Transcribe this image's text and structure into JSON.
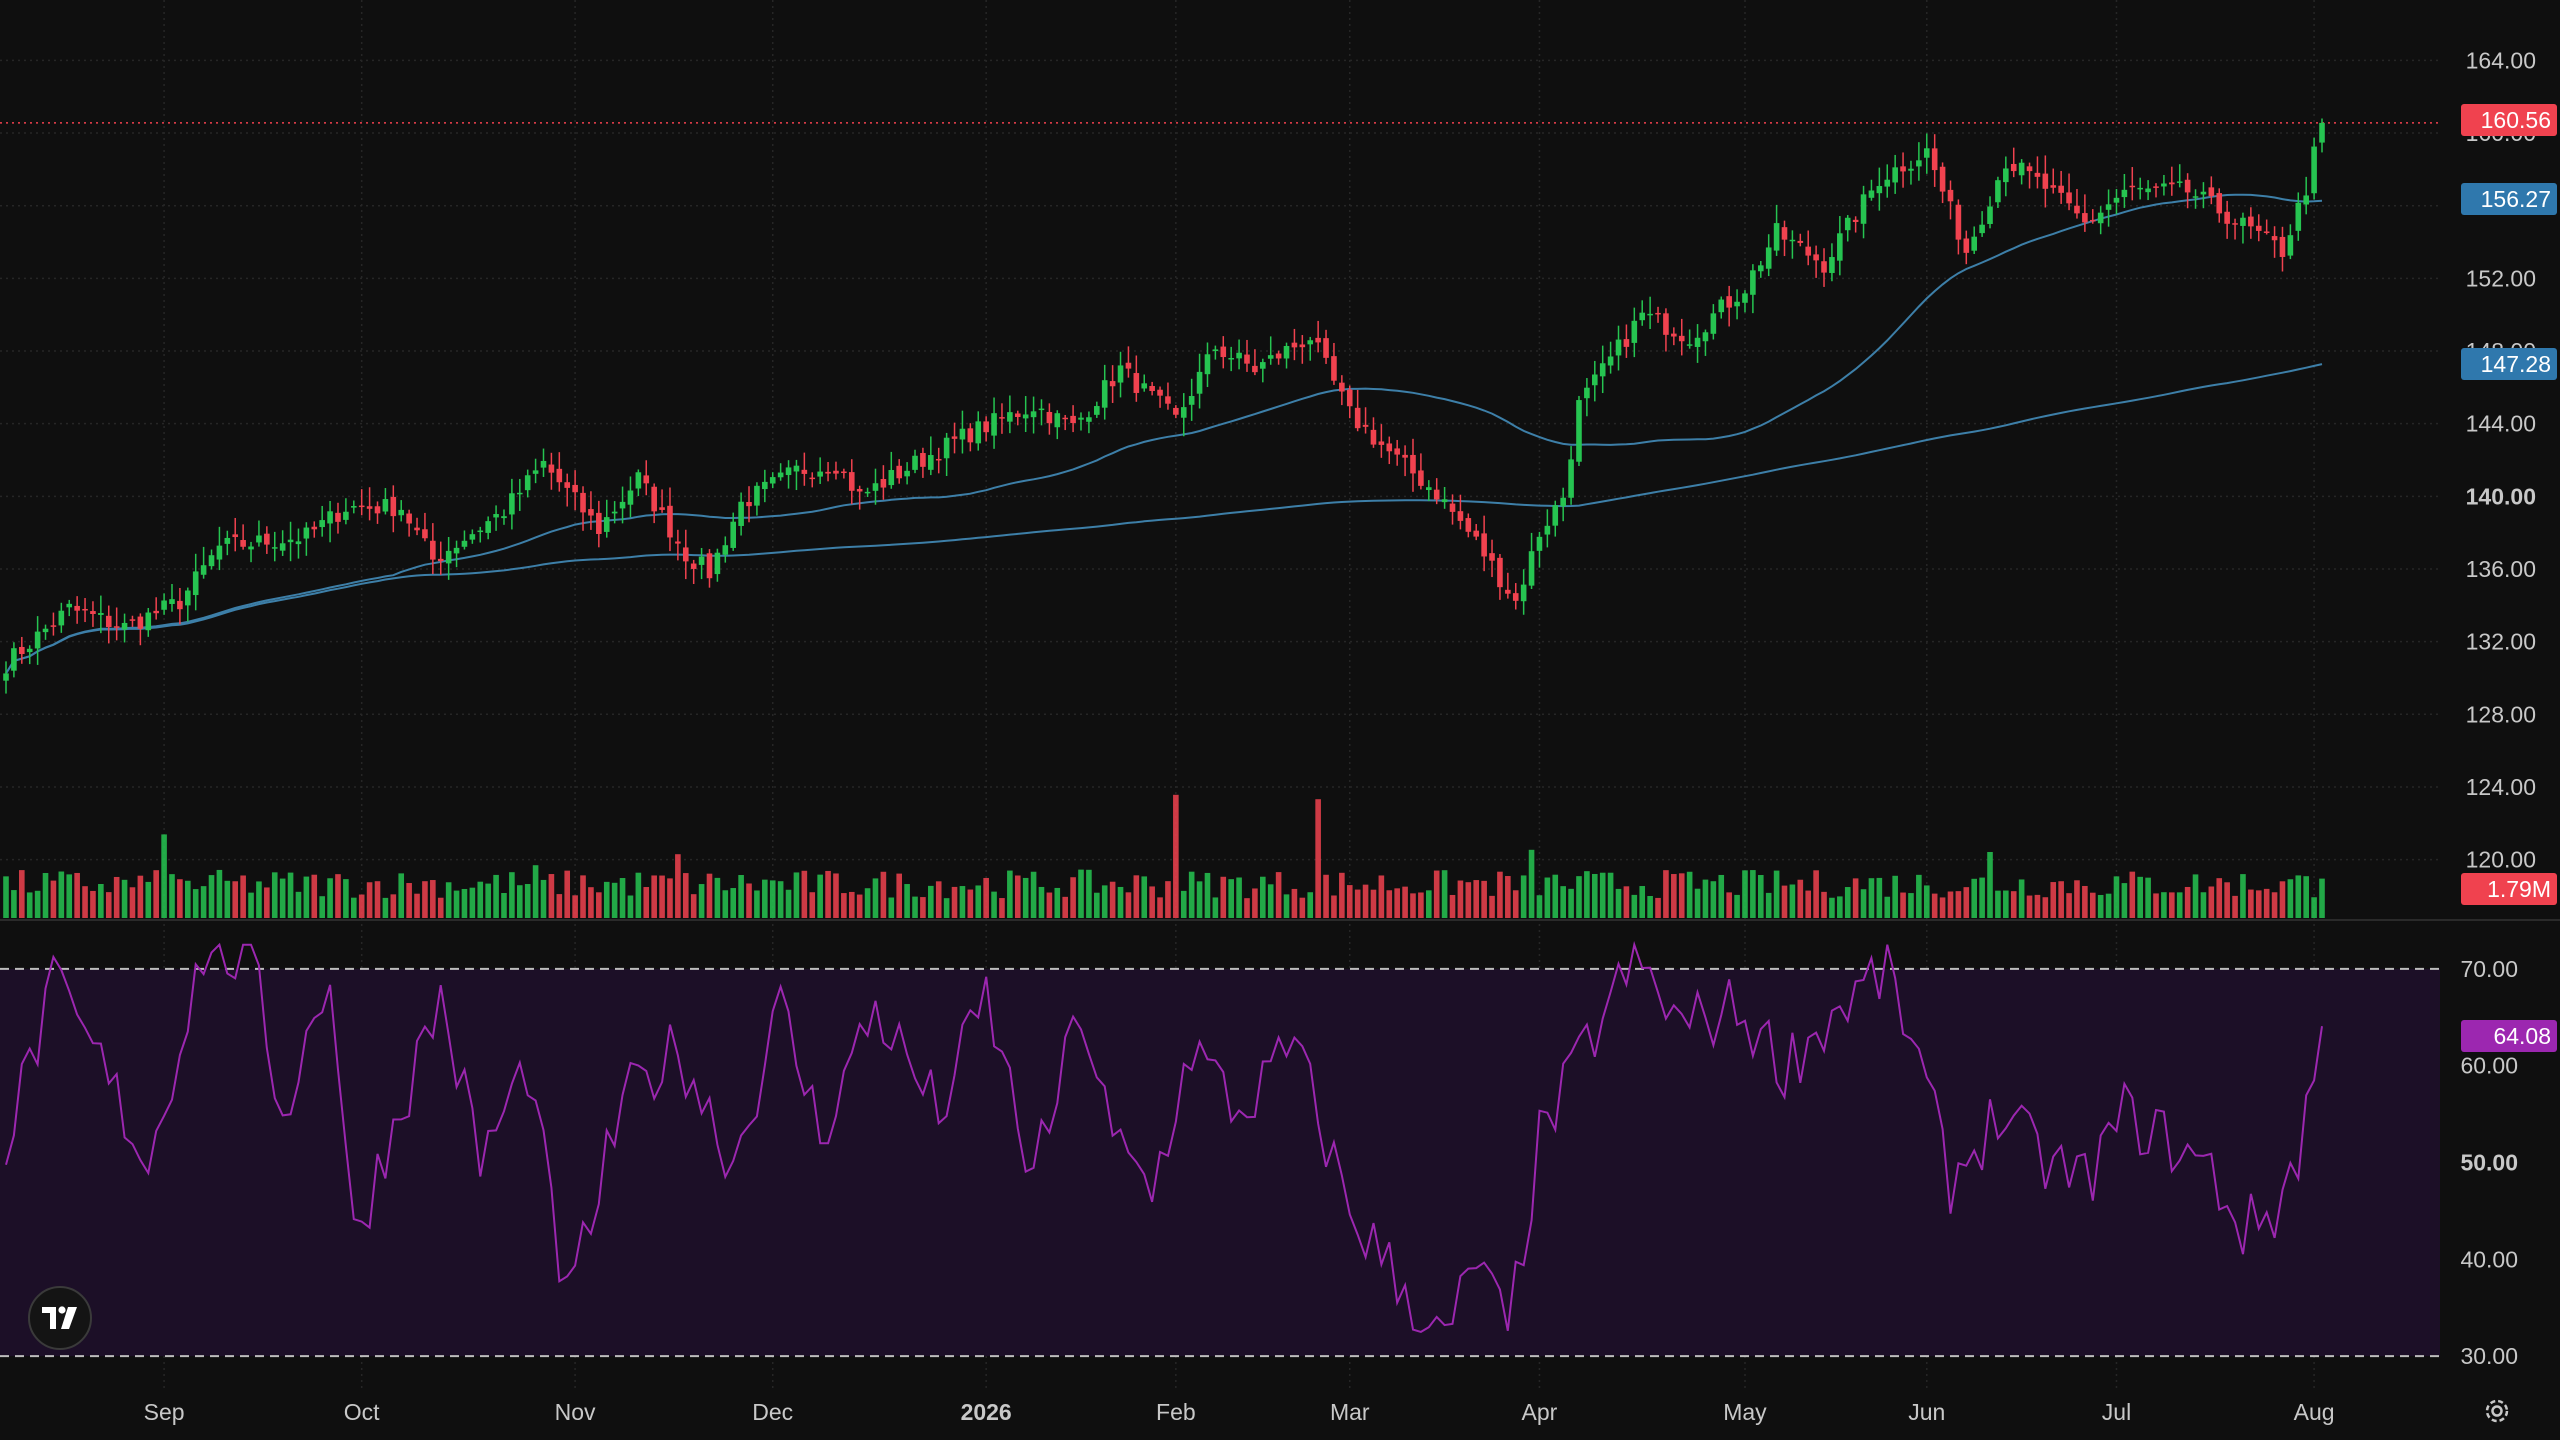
{
  "colors": {
    "background": "#0f0f0f",
    "up": "#26c451",
    "down": "#f0424f",
    "ma_line": "#3d7fa8",
    "rsi_line": "#9c27b0",
    "rsi_band": "#1c0f27",
    "last_price_label": "#f0424f",
    "ma50_label": "#2f78ad",
    "ma200_label": "#2f78ad",
    "rsi_label": "#9c27b0",
    "grid": "#262626",
    "axis_text": "#c8c8c8"
  },
  "labels": {
    "last_price": "160.56",
    "ma50": "156.27",
    "ma200": "147.28",
    "volume": "1.79M",
    "rsi": "64.08"
  },
  "icons": {
    "logo": "tradingview-logo-icon",
    "settings": "gear-icon"
  },
  "chart_data": {
    "type": "candlestick",
    "price_axis_ticks": [
      "164.00",
      "160.00",
      "156.00",
      "152.00",
      "148.00",
      "144.00",
      "140.00",
      "136.00",
      "132.00",
      "128.00",
      "124.00",
      "120.00"
    ],
    "price_range": [
      117.5,
      166.5
    ],
    "rsi_axis_ticks": [
      "70.00",
      "60.00",
      "50.00",
      "40.00",
      "30.00"
    ],
    "rsi_range": [
      26.5,
      73.5
    ],
    "rsi_bands": [
      30,
      70
    ],
    "time_axis": [
      "Sep",
      "Oct",
      "Nov",
      "Dec",
      "2026",
      "Feb",
      "Mar",
      "Apr",
      "May",
      "Jun",
      "Jul",
      "Aug"
    ],
    "month_tick_index": [
      20,
      45,
      72,
      97,
      124,
      148,
      170,
      194,
      220,
      243,
      267,
      292
    ],
    "total_bars": 294,
    "last_price": 160.56,
    "ma50_last": 156.27,
    "ma200_last": 147.28,
    "last_volume": "1.79M",
    "rsi_last": 64.08,
    "grid": true,
    "price_keypoints": [
      {
        "i": 0,
        "v": 130.8
      },
      {
        "i": 8,
        "v": 133.8
      },
      {
        "i": 15,
        "v": 132.8
      },
      {
        "i": 22,
        "v": 134.2
      },
      {
        "i": 27,
        "v": 137.2
      },
      {
        "i": 38,
        "v": 137.8
      },
      {
        "i": 43,
        "v": 139.4
      },
      {
        "i": 50,
        "v": 139.4
      },
      {
        "i": 54,
        "v": 136.5
      },
      {
        "i": 63,
        "v": 139.2
      },
      {
        "i": 68,
        "v": 141.8
      },
      {
        "i": 75,
        "v": 138.2
      },
      {
        "i": 80,
        "v": 141.0
      },
      {
        "i": 86,
        "v": 136.8
      },
      {
        "i": 89,
        "v": 135.8
      },
      {
        "i": 93,
        "v": 139.6
      },
      {
        "i": 100,
        "v": 141.4
      },
      {
        "i": 105,
        "v": 141.8
      },
      {
        "i": 108,
        "v": 140.0
      },
      {
        "i": 115,
        "v": 141.8
      },
      {
        "i": 122,
        "v": 143.5
      },
      {
        "i": 130,
        "v": 145.0
      },
      {
        "i": 135,
        "v": 143.8
      },
      {
        "i": 141,
        "v": 147.0
      },
      {
        "i": 148,
        "v": 144.2
      },
      {
        "i": 153,
        "v": 148.2
      },
      {
        "i": 158,
        "v": 147.0
      },
      {
        "i": 165,
        "v": 148.8
      },
      {
        "i": 170,
        "v": 144.5
      },
      {
        "i": 176,
        "v": 142.0
      },
      {
        "i": 181,
        "v": 140.2
      },
      {
        "i": 186,
        "v": 137.5
      },
      {
        "i": 191,
        "v": 134.2
      },
      {
        "i": 194,
        "v": 138.0
      },
      {
        "i": 197,
        "v": 140.0
      },
      {
        "i": 199,
        "v": 145.0
      },
      {
        "i": 207,
        "v": 150.0
      },
      {
        "i": 213,
        "v": 148.8
      },
      {
        "i": 220,
        "v": 151.5
      },
      {
        "i": 224,
        "v": 154.5
      },
      {
        "i": 230,
        "v": 152.8
      },
      {
        "i": 237,
        "v": 157.5
      },
      {
        "i": 243,
        "v": 159.0
      },
      {
        "i": 248,
        "v": 153.5
      },
      {
        "i": 253,
        "v": 158.5
      },
      {
        "i": 258,
        "v": 157.0
      },
      {
        "i": 263,
        "v": 155.0
      },
      {
        "i": 268,
        "v": 156.8
      },
      {
        "i": 276,
        "v": 156.8
      },
      {
        "i": 282,
        "v": 155.2
      },
      {
        "i": 288,
        "v": 153.5
      },
      {
        "i": 291,
        "v": 157.0
      },
      {
        "i": 293,
        "v": 160.6
      }
    ],
    "rsi_keypoints": [
      {
        "i": 0,
        "v": 52
      },
      {
        "i": 6,
        "v": 68
      },
      {
        "i": 12,
        "v": 60
      },
      {
        "i": 18,
        "v": 50
      },
      {
        "i": 25,
        "v": 72
      },
      {
        "i": 31,
        "v": 71
      },
      {
        "i": 35,
        "v": 55
      },
      {
        "i": 41,
        "v": 70
      },
      {
        "i": 44,
        "v": 42
      },
      {
        "i": 50,
        "v": 56
      },
      {
        "i": 55,
        "v": 67
      },
      {
        "i": 60,
        "v": 50
      },
      {
        "i": 66,
        "v": 60
      },
      {
        "i": 71,
        "v": 35
      },
      {
        "i": 78,
        "v": 56
      },
      {
        "i": 85,
        "v": 62
      },
      {
        "i": 92,
        "v": 50
      },
      {
        "i": 98,
        "v": 66
      },
      {
        "i": 103,
        "v": 53
      },
      {
        "i": 110,
        "v": 66
      },
      {
        "i": 118,
        "v": 55
      },
      {
        "i": 124,
        "v": 67
      },
      {
        "i": 130,
        "v": 48
      },
      {
        "i": 136,
        "v": 66
      },
      {
        "i": 140,
        "v": 52
      },
      {
        "i": 145,
        "v": 47
      },
      {
        "i": 150,
        "v": 62
      },
      {
        "i": 156,
        "v": 55
      },
      {
        "i": 163,
        "v": 62
      },
      {
        "i": 170,
        "v": 45
      },
      {
        "i": 176,
        "v": 38
      },
      {
        "i": 182,
        "v": 31
      },
      {
        "i": 186,
        "v": 40
      },
      {
        "i": 190,
        "v": 32
      },
      {
        "i": 194,
        "v": 52
      },
      {
        "i": 200,
        "v": 62
      },
      {
        "i": 206,
        "v": 71
      },
      {
        "i": 212,
        "v": 64
      },
      {
        "i": 219,
        "v": 66
      },
      {
        "i": 225,
        "v": 60
      },
      {
        "i": 232,
        "v": 66
      },
      {
        "i": 238,
        "v": 70
      },
      {
        "i": 242,
        "v": 60
      },
      {
        "i": 246,
        "v": 48
      },
      {
        "i": 252,
        "v": 55
      },
      {
        "i": 258,
        "v": 50
      },
      {
        "i": 263,
        "v": 48
      },
      {
        "i": 268,
        "v": 55
      },
      {
        "i": 274,
        "v": 52
      },
      {
        "i": 279,
        "v": 49
      },
      {
        "i": 283,
        "v": 43
      },
      {
        "i": 287,
        "v": 45
      },
      {
        "i": 290,
        "v": 51
      },
      {
        "i": 293,
        "v": 64
      }
    ],
    "volume_spikes": [
      {
        "i": 20,
        "v": 3.8
      },
      {
        "i": 148,
        "v": 5.6
      },
      {
        "i": 166,
        "v": 5.4
      },
      {
        "i": 193,
        "v": 3.1
      },
      {
        "i": 251,
        "v": 3.0
      },
      {
        "i": 67,
        "v": 2.4
      },
      {
        "i": 85,
        "v": 2.9
      }
    ]
  }
}
